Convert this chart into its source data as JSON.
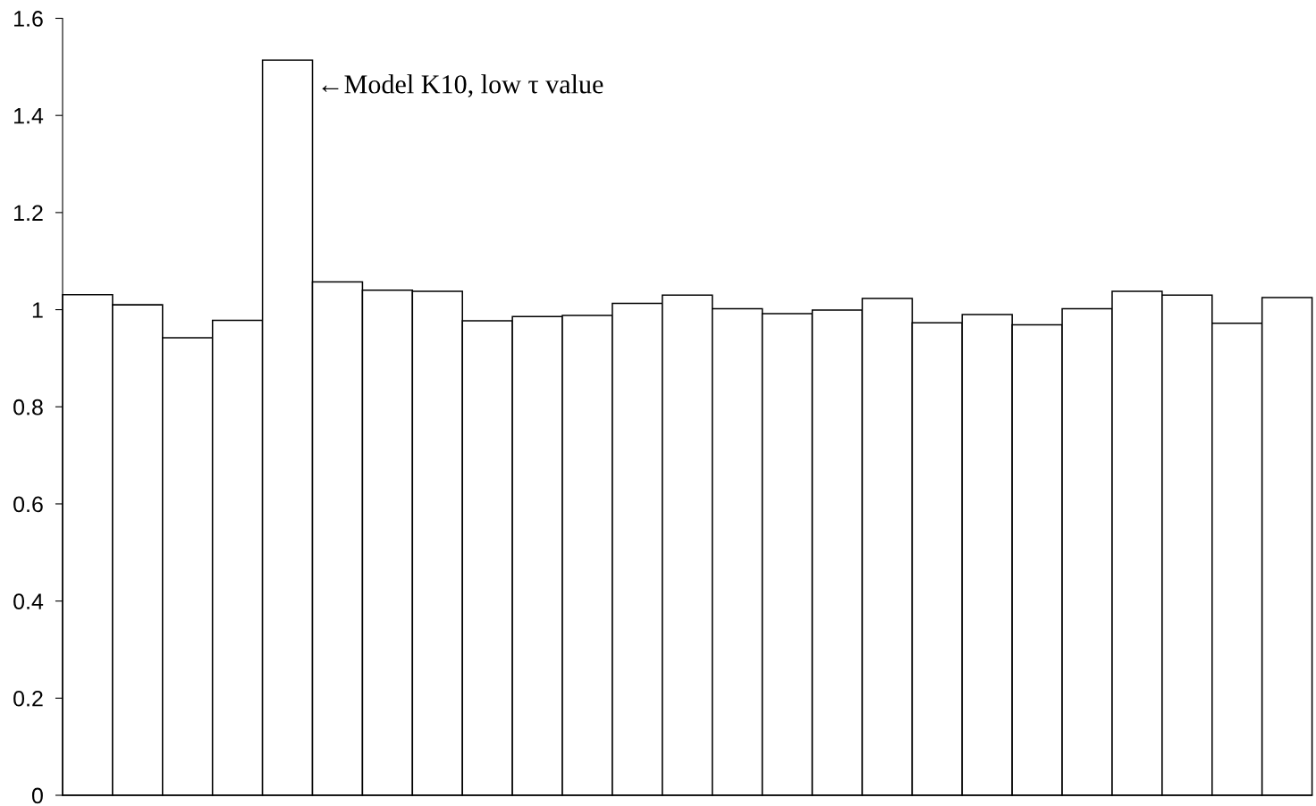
{
  "chart_data": {
    "type": "bar",
    "categories": [
      null,
      null,
      null,
      null,
      null,
      null,
      null,
      null,
      null,
      null,
      null,
      null,
      null,
      null,
      null,
      null,
      null,
      null,
      null,
      null,
      null,
      null,
      null,
      null,
      null
    ],
    "values": [
      1.031,
      1.01,
      0.942,
      0.978,
      1.514,
      1.057,
      1.04,
      1.038,
      0.977,
      0.986,
      0.988,
      1.013,
      1.03,
      1.002,
      0.992,
      0.999,
      1.023,
      0.973,
      0.99,
      0.969,
      1.002,
      1.038,
      1.03,
      0.972,
      1.025
    ],
    "color": "#ffffff",
    "ylim": [
      0,
      1.6
    ],
    "yticks": [
      0,
      0.2,
      0.4,
      0.6,
      0.8,
      1,
      1.2,
      1.4,
      1.6
    ],
    "tick_labels": "y",
    "annotations": [
      "←Model K10, low τ value"
    ]
  }
}
